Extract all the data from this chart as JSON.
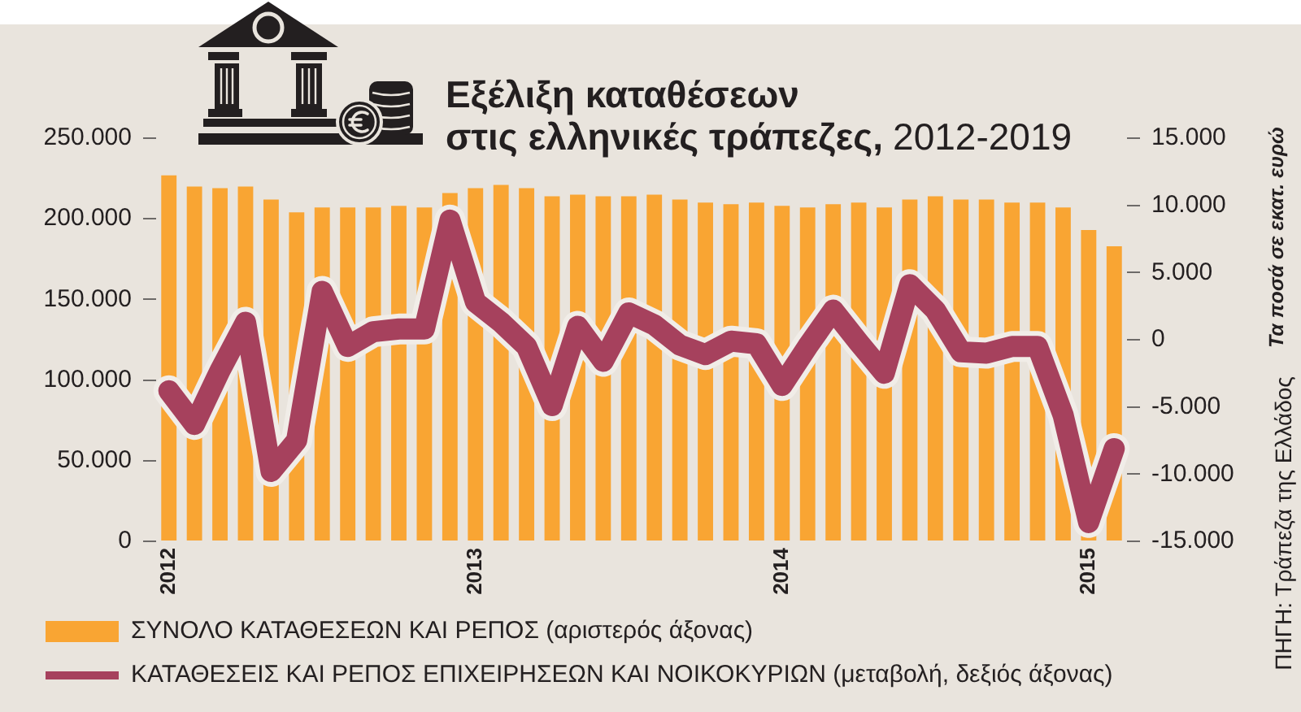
{
  "chart_data": {
    "type": "bar",
    "title": "Εξέλιξη καταθέσεων στις ελληνικές τράπεζες,",
    "subtitle": "2012-2019",
    "y2label": "Τα ποσά σε εκατ. ευρώ",
    "annotations": [
      "ΠΗΓΗ: Τράπεζα της Ελλάδος"
    ],
    "categories": [
      "2012",
      null,
      null,
      null,
      null,
      null,
      null,
      null,
      null,
      null,
      null,
      null,
      "2013",
      null,
      null,
      null,
      null,
      null,
      null,
      null,
      null,
      null,
      null,
      null,
      "2014",
      null,
      null,
      null,
      null,
      null,
      null,
      null,
      null,
      null,
      null,
      null,
      "2015",
      null
    ],
    "series": [
      {
        "name": "ΣΥΝΟΛΟ ΚΑΤΑΘΕΣΕΩΝ ΚΑΙ ΡΕΠΟΣ (αριστερός άξονας)",
        "color": "#f9a533",
        "values": [
          227000,
          220000,
          219000,
          220000,
          212000,
          204000,
          207000,
          207000,
          207000,
          208000,
          207000,
          216000,
          219000,
          221000,
          219000,
          214000,
          215000,
          214000,
          214000,
          215000,
          212000,
          210000,
          209000,
          210000,
          208000,
          207000,
          209000,
          210000,
          207000,
          212000,
          214000,
          212000,
          212000,
          210000,
          210000,
          207000,
          193000,
          183000
        ]
      },
      {
        "name": "ΚΑΤΑΘΕΣΕΙΣ ΚΑΙ ΡΕΠΟΣ ΕΠΙΧΕΙΡΗΣΕΩΝ ΚΑΙ ΝΟΙΚΟΚΥΡΙΩΝ (μεταβολή, δεξιός άξονας)",
        "type": "line",
        "axis": "y2",
        "color": "#a6415d",
        "values": [
          -3800,
          -6300,
          -2300,
          1300,
          -9800,
          -7500,
          3600,
          -500,
          600,
          800,
          800,
          8900,
          2800,
          1300,
          -500,
          -4900,
          1000,
          -1600,
          2000,
          1100,
          -400,
          -1100,
          -100,
          -300,
          -3400,
          -500,
          2200,
          -200,
          -2500,
          4100,
          2200,
          -900,
          -1000,
          -500,
          -500,
          -5600,
          -13600,
          -8100
        ]
      }
    ],
    "ylim": [
      0,
      250000
    ],
    "yticks": [
      {
        "value": 0,
        "label": "0"
      },
      {
        "value": 50000,
        "label": "50.000"
      },
      {
        "value": 100000,
        "label": "100.000"
      },
      {
        "value": 150000,
        "label": "150.000"
      },
      {
        "value": 200000,
        "label": "200.000"
      },
      {
        "value": 250000,
        "label": "250.000"
      }
    ],
    "y2lim": [
      -15000,
      15000
    ],
    "y2ticks": [
      {
        "value": -15000,
        "label": "-15.000"
      },
      {
        "value": -10000,
        "label": "-10.000"
      },
      {
        "value": -5000,
        "label": "-5.000"
      },
      0,
      {
        "value": 5000,
        "label": "5.000"
      },
      {
        "value": 10000,
        "label": "10.000"
      },
      {
        "value": 15000,
        "label": "15.000"
      }
    ],
    "grid": false,
    "legend": "bottom left",
    "marker": "none",
    "line_style": "solid"
  }
}
